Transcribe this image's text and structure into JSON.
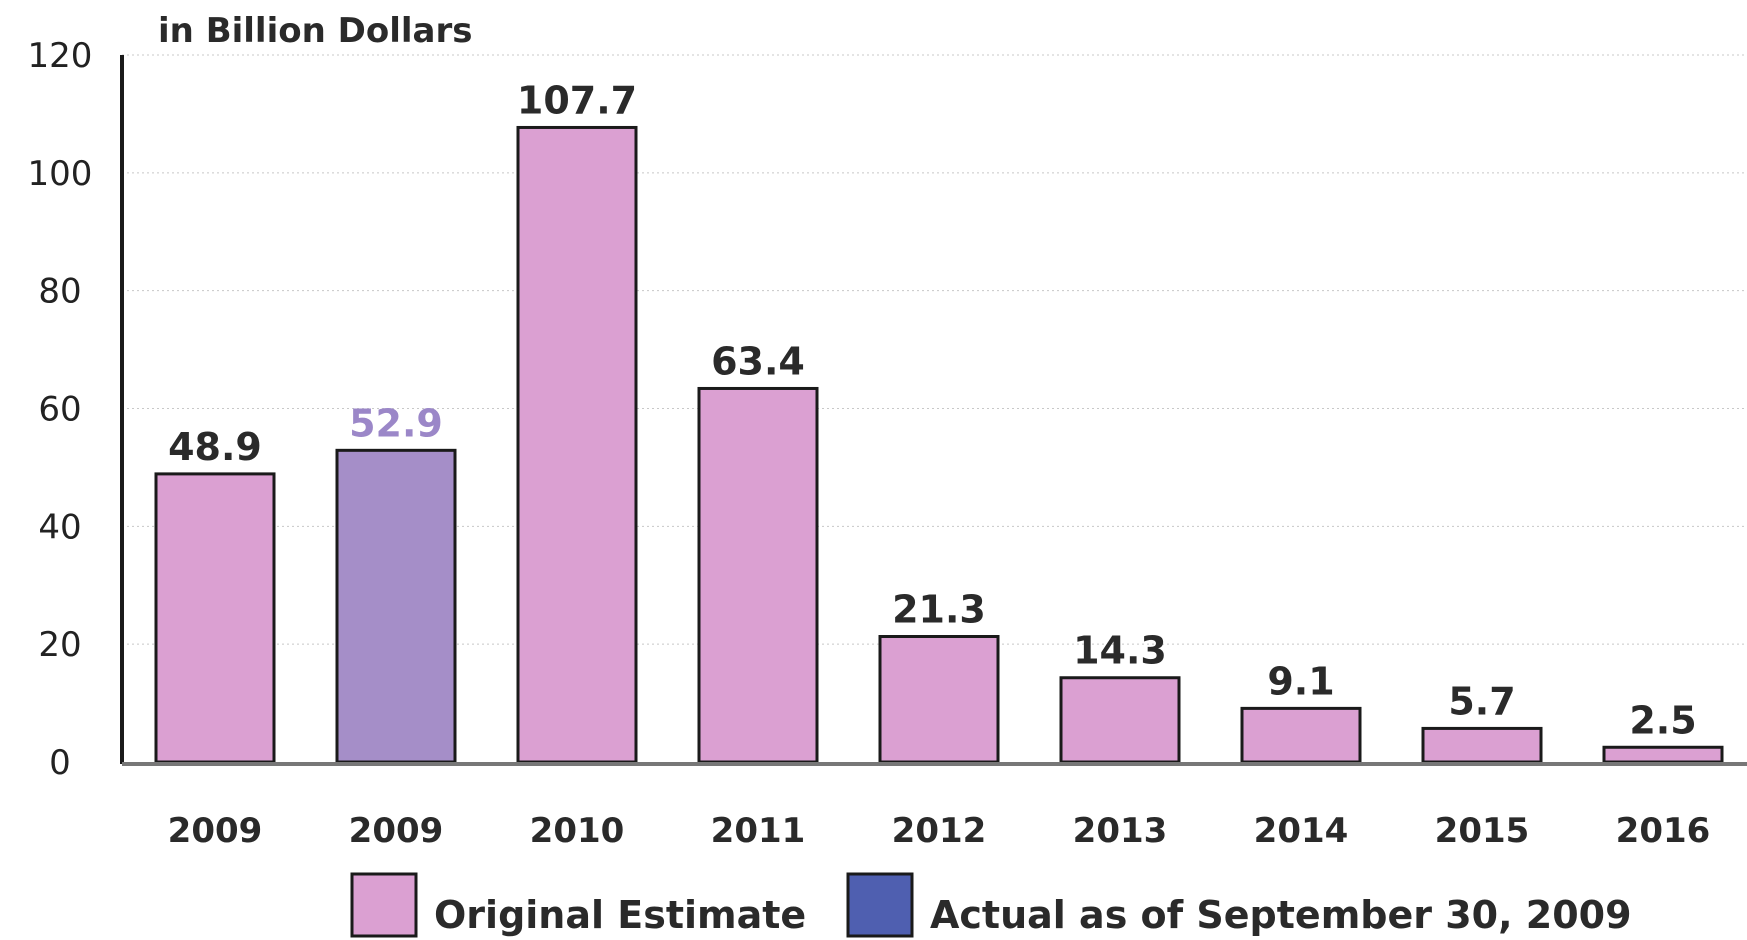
{
  "chart_data": {
    "type": "bar",
    "title": "",
    "ylabel": "in Billion Dollars",
    "xlabel": "",
    "ylim": [
      0,
      120
    ],
    "yticks": [
      0,
      20,
      40,
      60,
      80,
      100,
      120
    ],
    "ytick_labels": [
      "0",
      "20",
      "40",
      "60",
      "80",
      "100",
      "120"
    ],
    "grid": true,
    "legend_position": "bottom",
    "categories": [
      "2009",
      "2009",
      "2010",
      "2011",
      "2012",
      "2013",
      "2014",
      "2015",
      "2016"
    ],
    "series": [
      {
        "name": "Original Estimate",
        "color": "#dba0d2",
        "values": [
          48.9,
          null,
          107.7,
          63.4,
          21.3,
          14.3,
          9.1,
          5.7,
          2.5
        ],
        "value_labels": [
          "48.9",
          null,
          "107.7",
          "63.4",
          "21.3",
          "14.3",
          "9.1",
          "5.7",
          "2.5"
        ],
        "label_color": "#2a2a2a"
      },
      {
        "name": "Actual as of September 30, 2009",
        "color": "#a58ec8",
        "legend_color": "#4f5fb0",
        "values": [
          null,
          52.9,
          null,
          null,
          null,
          null,
          null,
          null,
          null
        ],
        "value_labels": [
          null,
          "52.9",
          null,
          null,
          null,
          null,
          null,
          null,
          null
        ],
        "label_color": "#9b87c8"
      }
    ]
  }
}
